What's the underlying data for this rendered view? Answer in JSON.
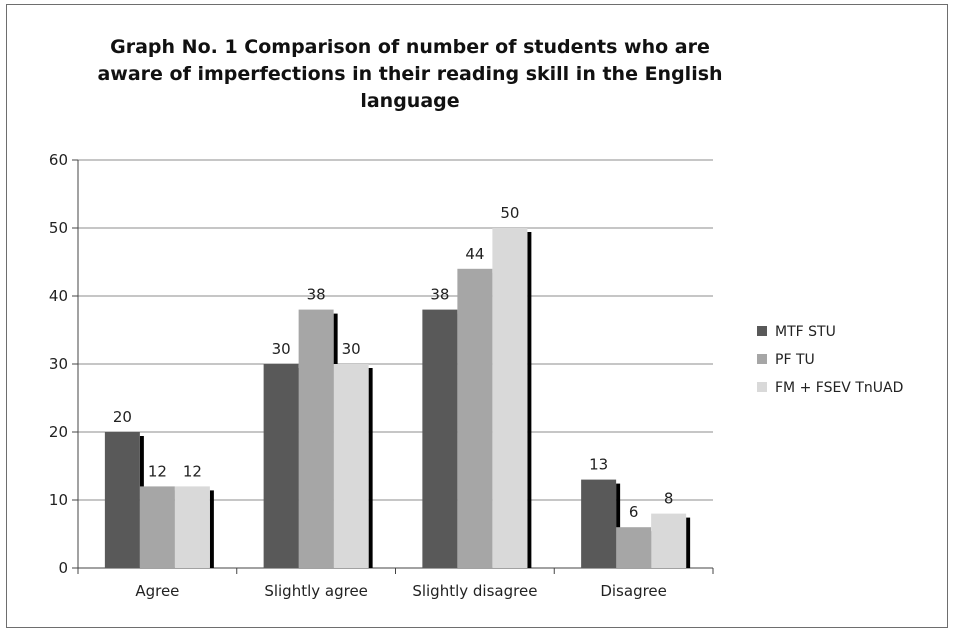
{
  "chart_data": {
    "type": "bar",
    "title_lines": [
      "Graph No. 1 Comparison of number of students who are",
      "aware of imperfections in their reading skill in the English",
      "language"
    ],
    "categories": [
      "Agree",
      "Slightly agree",
      "Slightly disagree",
      "Disagree"
    ],
    "series": [
      {
        "name": "MTF STU",
        "values": [
          20,
          30,
          38,
          13
        ],
        "color": "#595959"
      },
      {
        "name": "PF TU",
        "values": [
          12,
          38,
          44,
          6
        ],
        "color": "#a6a6a6"
      },
      {
        "name": "FM + FSEV TnUAD",
        "values": [
          12,
          30,
          50,
          8
        ],
        "color": "#d9d9d9"
      }
    ],
    "ylim": [
      0,
      60
    ],
    "yticks": [
      0,
      10,
      20,
      30,
      40,
      50,
      60
    ],
    "grid": true,
    "legend": "right",
    "xlabel": "",
    "ylabel": ""
  }
}
